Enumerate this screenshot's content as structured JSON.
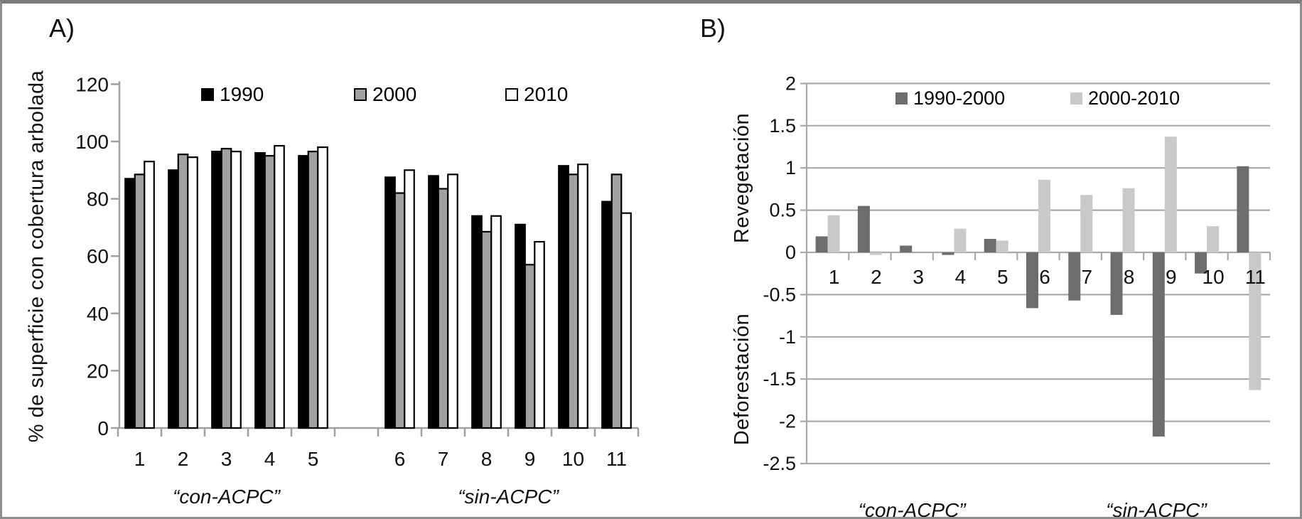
{
  "figure": {
    "panel_a_label": "A)",
    "panel_b_label": "B)"
  },
  "chart_data": [
    {
      "type": "bar",
      "panel": "A",
      "ylabel": "% de superficie con cobertura arbolada",
      "ylim": [
        0,
        120
      ],
      "yticks": [
        0,
        20,
        40,
        60,
        80,
        100,
        120
      ],
      "grid": false,
      "legend_position": "top-inside",
      "categories": [
        "1",
        "2",
        "3",
        "4",
        "5",
        "6",
        "7",
        "8",
        "9",
        "10",
        "11"
      ],
      "group_labels": [
        {
          "text": "“con-ACPC”",
          "categories": [
            "1",
            "2",
            "3",
            "4",
            "5"
          ]
        },
        {
          "text": "“sin-ACPC”",
          "categories": [
            "6",
            "7",
            "8",
            "9",
            "10",
            "11"
          ]
        }
      ],
      "series": [
        {
          "name": "1990",
          "color": "#000000",
          "values": [
            87,
            90,
            96.5,
            96,
            95,
            87.5,
            88,
            74,
            71,
            91.5,
            79
          ]
        },
        {
          "name": "2000",
          "color": "#a1a1a1",
          "values": [
            88.5,
            95.5,
            97.5,
            95,
            96.5,
            82,
            83.5,
            68.5,
            57,
            88.5,
            88.5
          ]
        },
        {
          "name": "2010",
          "color": "#ffffff",
          "values": [
            93,
            94.5,
            96.5,
            98.5,
            98,
            90,
            88.5,
            74,
            65,
            92,
            75
          ]
        }
      ]
    },
    {
      "type": "bar",
      "panel": "B",
      "ylabel_positive": "Revegetación",
      "ylabel_negative": "Deforestación",
      "ylim": [
        -2.5,
        2
      ],
      "yticks": [
        2,
        1.5,
        1,
        0.5,
        0,
        -0.5,
        -1,
        -1.5,
        -2,
        -2.5
      ],
      "grid": true,
      "legend_position": "top-inside",
      "categories": [
        "1",
        "2",
        "3",
        "4",
        "5",
        "6",
        "7",
        "8",
        "9",
        "10",
        "11"
      ],
      "group_labels": [
        {
          "text": "“con-ACPC”",
          "categories": [
            "1",
            "2",
            "3",
            "4",
            "5"
          ]
        },
        {
          "text": "“sin-ACPC”",
          "categories": [
            "6",
            "7",
            "8",
            "9",
            "10",
            "11"
          ]
        }
      ],
      "series": [
        {
          "name": "1990-2000",
          "color": "#6d6d6d",
          "values": [
            0.19,
            0.55,
            0.08,
            -0.03,
            0.16,
            -0.66,
            -0.57,
            -0.74,
            -2.18,
            -0.25,
            1.02
          ]
        },
        {
          "name": "2000-2010",
          "color": "#c9c9c9",
          "values": [
            0.44,
            -0.03,
            0,
            0.28,
            0.14,
            0.86,
            0.68,
            0.76,
            1.37,
            0.31,
            -1.63
          ]
        }
      ]
    }
  ]
}
